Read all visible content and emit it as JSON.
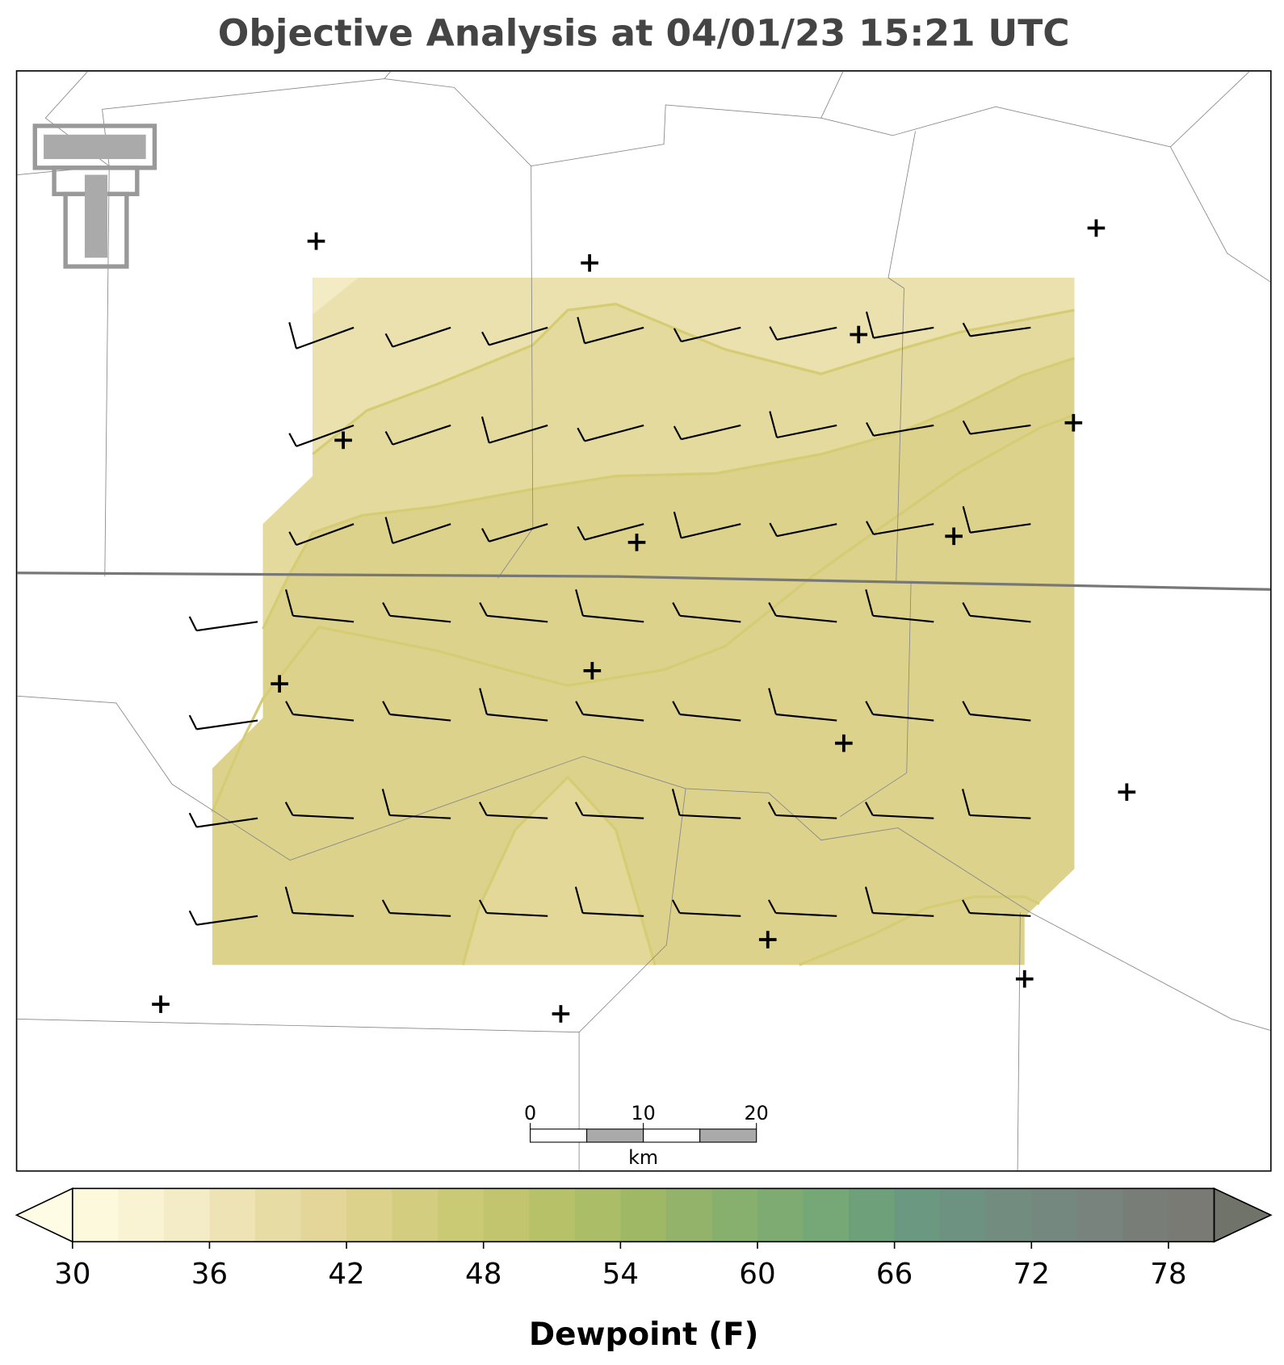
{
  "title": "Objective Analysis at 04/01/23 15:21 UTC",
  "scale_bar": {
    "ticks": [
      0,
      10,
      20
    ],
    "unit": "km"
  },
  "colorbar": {
    "label": "Dewpoint (F)",
    "range": [
      30,
      80
    ],
    "step": 2,
    "ticks": [
      30,
      36,
      42,
      48,
      54,
      60,
      66,
      72,
      78
    ],
    "colors": [
      "#fdf9dd",
      "#f9f3d3",
      "#f4ecc6",
      "#eee3b5",
      "#e8dca5",
      "#e3d698",
      "#dcd28c",
      "#d3cd7f",
      "#cbca74",
      "#c2c56d",
      "#b7c168",
      "#abbd66",
      "#9fb866",
      "#93b36a",
      "#87b06e",
      "#7eab72",
      "#75a777",
      "#6ea07a",
      "#6b9880",
      "#6e9282",
      "#728c80",
      "#75887f",
      "#77837c",
      "#787e77",
      "#787a73"
    ],
    "under_color": "#fffce6",
    "over_color": "#6f736a"
  }
}
